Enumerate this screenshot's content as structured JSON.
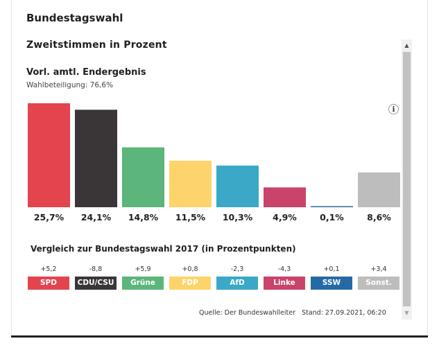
{
  "widget_title": "Bundestagswahl",
  "section_title": "Zweitstimmen in Prozent",
  "result_title": "Vorl. amtl. Endergebnis",
  "turnout": "Wahlbeteiligung: 76,6%",
  "info_label": "i",
  "chart_data": {
    "type": "bar",
    "title": "Zweitstimmen in Prozent",
    "subtitle": "Vorl. amtl. Endergebnis",
    "categories": [
      "SPD",
      "CDU/CSU",
      "Grüne",
      "FDP",
      "AfD",
      "Linke",
      "SSW",
      "Sonst."
    ],
    "values": [
      25.7,
      24.1,
      14.8,
      11.5,
      10.3,
      4.9,
      0.1,
      8.6
    ],
    "value_labels": [
      "25,7%",
      "24,1%",
      "14,8%",
      "11,5%",
      "10,3%",
      "4,9%",
      "0,1%",
      "8,6%"
    ],
    "colors": [
      "#e3444e",
      "#3a3638",
      "#5cb57a",
      "#fdd46b",
      "#3aa8c6",
      "#c9436b",
      "#256aa5",
      "#bdbdbd"
    ],
    "ylim": [
      0,
      25.7
    ],
    "grid": false,
    "legend": "none"
  },
  "comparison": {
    "title": "Vergleich zur Bundestagswahl 2017 (in Prozentpunkten)",
    "diffs": [
      "+5,2",
      "-8,8",
      "+5,9",
      "+0,8",
      "-2,3",
      "-4,3",
      "+0,1",
      "+3,4"
    ],
    "badges": [
      "SPD",
      "CDU/CSU",
      "Grüne",
      "FDP",
      "AfD",
      "Linke",
      "SSW",
      "Sonst."
    ]
  },
  "source": {
    "text": "Quelle: Der Bundeswahlleiter",
    "stand": "Stand: 27.09.2021, 06:20"
  },
  "scrollbar": {
    "up": "▲",
    "down": "▼"
  }
}
